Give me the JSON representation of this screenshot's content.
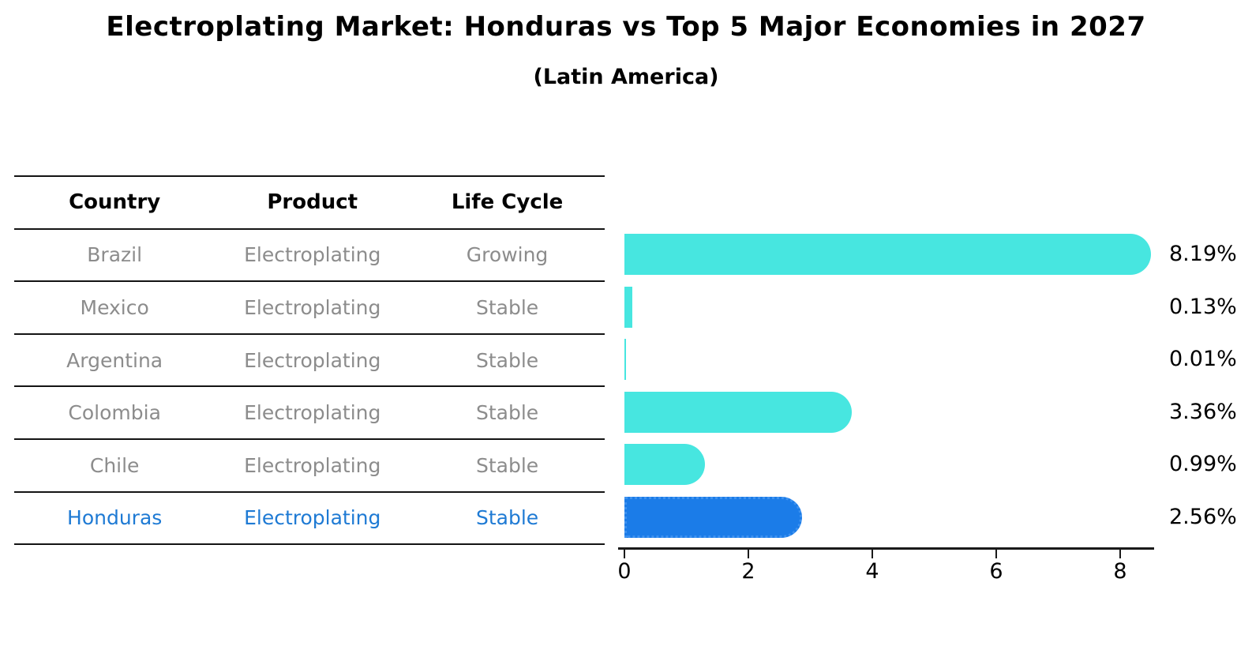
{
  "title": "Electroplating Market: Honduras vs Top 5 Major Economies in 2027",
  "subtitle": "(Latin America)",
  "table": {
    "headers": [
      "Country",
      "Product",
      "Life Cycle"
    ],
    "rows": [
      {
        "country": "Brazil",
        "product": "Electroplating",
        "life_cycle": "Growing",
        "highlight": false
      },
      {
        "country": "Mexico",
        "product": "Electroplating",
        "life_cycle": "Stable",
        "highlight": false
      },
      {
        "country": "Argentina",
        "product": "Electroplating",
        "life_cycle": "Stable",
        "highlight": false
      },
      {
        "country": "Colombia",
        "product": "Electroplating",
        "life_cycle": "Stable",
        "highlight": false
      },
      {
        "country": "Chile",
        "product": "Electroplating",
        "life_cycle": "Stable",
        "highlight": false
      },
      {
        "country": "Honduras",
        "product": "Electroplating",
        "life_cycle": "Stable",
        "highlight": true
      }
    ]
  },
  "chart_data": {
    "type": "bar",
    "orientation": "horizontal",
    "title": "Electroplating Market: Honduras vs Top 5 Major Economies in 2027",
    "subtitle": "(Latin America)",
    "categories": [
      "Brazil",
      "Mexico",
      "Argentina",
      "Colombia",
      "Chile",
      "Honduras"
    ],
    "values": [
      8.19,
      0.13,
      0.01,
      3.36,
      0.99,
      2.56
    ],
    "value_labels": [
      "8.19%",
      "0.13%",
      "0.01%",
      "3.36%",
      "0.99%",
      "2.56%"
    ],
    "x_tick_labels": [
      "0",
      "2",
      "4",
      "6",
      "8"
    ],
    "xlim": [
      0,
      8.55
    ],
    "grid": false,
    "legend": false,
    "highlight_index": 5,
    "bar_color": "#47e6e0",
    "highlight_bar_color": "#1b7ce8",
    "highlight_text_color": "#1e7ad4"
  },
  "colors": {
    "text_primary": "#000000",
    "text_muted": "#8c8c8c",
    "axis": "#1a1a1a"
  }
}
